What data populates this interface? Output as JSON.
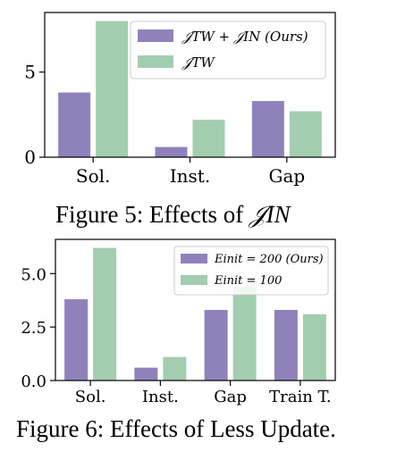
{
  "chart_data": [
    {
      "type": "bar",
      "categories": [
        "Sol.",
        "Inst.",
        "Gap"
      ],
      "ylim": [
        0,
        8.5
      ],
      "yticks": [
        0,
        5
      ],
      "ytick_labels": [
        "0",
        "5"
      ],
      "series": [
        {
          "name": "𝒥TW + 𝒥IN (Ours)",
          "color": "#8f82bb",
          "values": [
            3.8,
            0.6,
            3.3
          ]
        },
        {
          "name": "𝒥TW",
          "color": "#a3cdaf",
          "values": [
            8.0,
            2.2,
            2.7
          ]
        }
      ],
      "legend": {
        "placement": "top-right",
        "entries": [
          "𝒥TW + 𝒥IN (Ours)",
          "𝒥TW"
        ]
      },
      "grid": false,
      "caption": {
        "prefix": "Figure 5:",
        "text": "Effects of",
        "math": "𝒥IN"
      }
    },
    {
      "type": "bar",
      "categories": [
        "Sol.",
        "Inst.",
        "Gap",
        "Train T."
      ],
      "ylim": [
        0,
        6.6
      ],
      "yticks": [
        0.0,
        2.5,
        5.0
      ],
      "ytick_labels": [
        "0.0",
        "2.5",
        "5.0"
      ],
      "series": [
        {
          "name": "Einit = 200 (Ours)",
          "color": "#8f82bb",
          "values": [
            3.8,
            0.6,
            3.3,
            3.3
          ]
        },
        {
          "name": "Einit = 100",
          "color": "#a3cdaf",
          "values": [
            6.2,
            1.1,
            4.4,
            3.1
          ]
        }
      ],
      "legend": {
        "placement": "top-right",
        "entries": [
          "Einit = 200 (Ours)",
          "Einit = 100"
        ]
      },
      "grid": false,
      "caption": {
        "prefix": "Figure 6:",
        "text": "Effects of Less Update."
      }
    }
  ]
}
